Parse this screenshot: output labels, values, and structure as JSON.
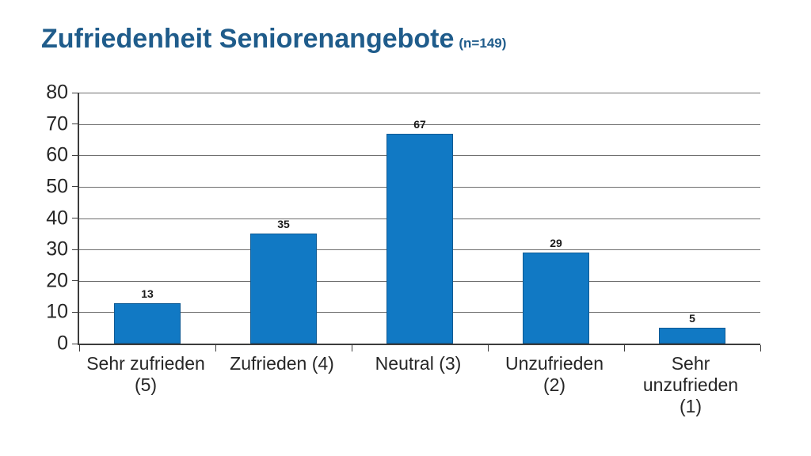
{
  "title": {
    "main": "Zufriedenheit Seniorenangebote",
    "n": "(n=149)"
  },
  "chart_data": {
    "type": "bar",
    "title": "Zufriedenheit Seniorenangebote (n=149)",
    "categories": [
      "Sehr zufrieden (5)",
      "Zufrieden (4)",
      "Neutral (3)",
      "Unzufrieden (2)",
      "Sehr unzufrieden (1)"
    ],
    "category_lines": [
      [
        "Sehr zufrieden",
        "(5)"
      ],
      [
        "Zufrieden (4)"
      ],
      [
        "Neutral (3)"
      ],
      [
        "Unzufrieden",
        "(2)"
      ],
      [
        "Sehr",
        "unzufrieden",
        "(1)"
      ]
    ],
    "values": [
      13,
      35,
      67,
      29,
      5
    ],
    "value_labels": [
      "13",
      "35",
      "67",
      "29",
      "5"
    ],
    "xlabel": "",
    "ylabel": "",
    "ylim": [
      0,
      80
    ],
    "yticks": [
      0,
      10,
      20,
      30,
      40,
      50,
      60,
      70,
      80
    ],
    "grid": true,
    "legend_position": "none",
    "colors": {
      "bar_fill": "#1179C4",
      "bar_border": "#0E5A94",
      "gridline": "#6E6E6E",
      "axis": "#3C3C3C",
      "tick_text": "#262626",
      "value_text": "#1A1A1A",
      "title_text": "#1F5C8B"
    }
  }
}
